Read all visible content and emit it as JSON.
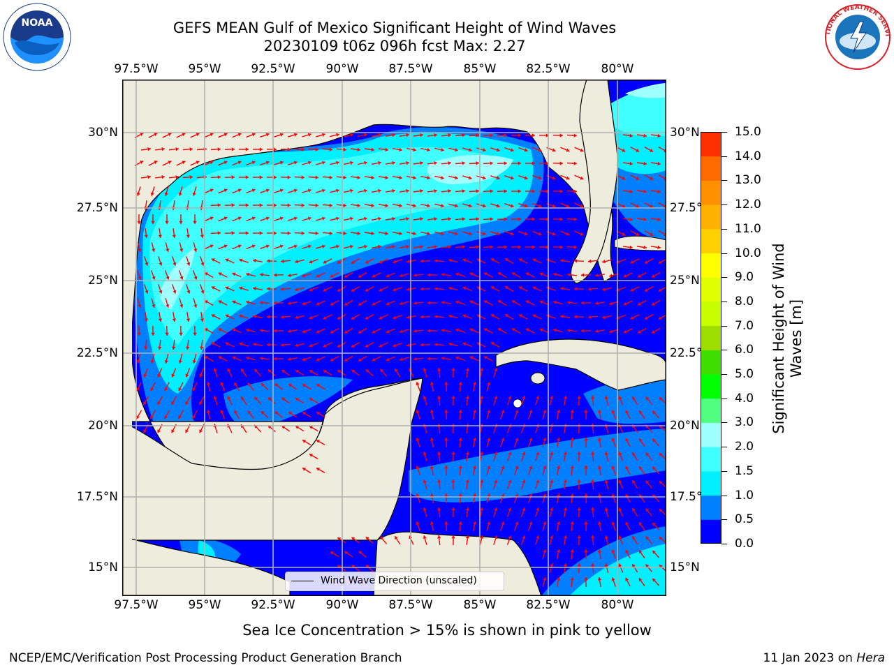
{
  "title": {
    "line1": "GEFS MEAN Gulf of Mexico Significant Height of Wind Waves",
    "line2": "20230109 t06z 096h fcst   Max: 2.27"
  },
  "logos": {
    "noaa": "NOAA",
    "noaa_ring": "NATIONAL OCEANIC AND ATMOSPHERIC ADMINISTRATION · U.S. DEPARTMENT OF COMMERCE",
    "nws_ring": "NATIONAL WEATHER SERVICE"
  },
  "map": {
    "projection": "PlateCarree",
    "lon_range": [
      -98.0,
      -78.2
    ],
    "lat_range": [
      14.0,
      31.8
    ],
    "lon_ticks": [
      "97.5°W",
      "95°W",
      "92.5°W",
      "90°W",
      "87.5°W",
      "85°W",
      "82.5°W",
      "80°W"
    ],
    "lat_ticks": [
      "30°N",
      "27.5°N",
      "25°N",
      "22.5°N",
      "20°N",
      "17.5°N",
      "15°N"
    ],
    "gridlines": true,
    "land_color": "#eeecdc",
    "ocean_default_color": "#0000ff",
    "arrow_color": "#ff0000"
  },
  "legend": {
    "label": "Wind Wave Direction (unscaled)",
    "placement": "lower-center"
  },
  "colorbar": {
    "label": "Significant Height of Wind Waves [m]",
    "ticks": [
      "15.0",
      "14.0",
      "13.0",
      "12.0",
      "11.0",
      "10.0",
      "9.0",
      "8.0",
      "7.0",
      "6.0",
      "5.0",
      "4.0",
      "3.0",
      "2.0",
      "1.5",
      "1.0",
      "0.5",
      "0.0"
    ],
    "colors": [
      "#0000ff",
      "#0080ff",
      "#00f0ff",
      "#40ffff",
      "#a0ffff",
      "#50ff80",
      "#00ff00",
      "#40dd00",
      "#9edd00",
      "#c8ff00",
      "#e0ff00",
      "#ffff00",
      "#ffd000",
      "#ffb000",
      "#ff9000",
      "#ff6a00",
      "#ff3000",
      "#ff0000"
    ]
  },
  "chart_data": {
    "type": "heatmap",
    "title": "GEFS MEAN Gulf of Mexico Significant Height of Wind Waves",
    "variable": "Significant Height of Wind Waves [m]",
    "forecast": "20230109 t06z 096h fcst",
    "max": 2.27,
    "color_levels": [
      0.0,
      0.5,
      1.0,
      1.5,
      2.0,
      3.0,
      4.0,
      5.0,
      6.0,
      7.0,
      8.0,
      9.0,
      10.0,
      11.0,
      12.0,
      13.0,
      14.0,
      15.0
    ]
  },
  "notes": {
    "sea_ice": "Sea Ice Concentration > 15% is shown in pink to yellow"
  },
  "footer": {
    "left": "NCEP/EMC/Verification Post Processing Product Generation Branch",
    "date": "11 Jan 2023 on ",
    "host": "Hera"
  }
}
